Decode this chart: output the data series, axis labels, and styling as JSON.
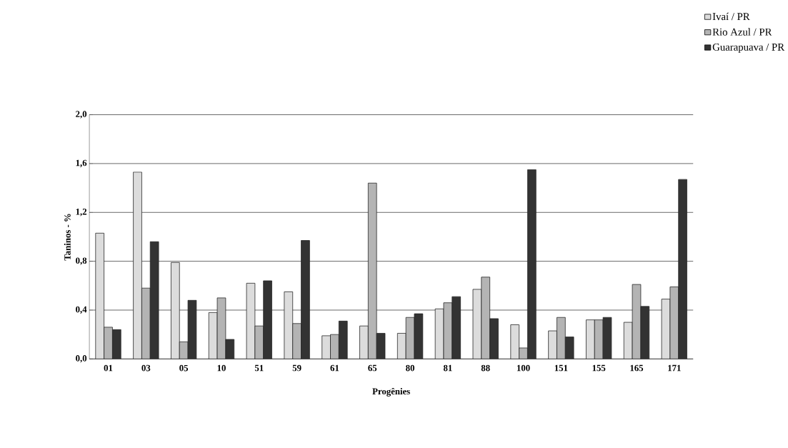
{
  "chart_data": {
    "type": "bar",
    "xlabel": "Progênies",
    "ylabel": "Taninos  -  %",
    "categories": [
      "01",
      "03",
      "05",
      "10",
      "51",
      "59",
      "61",
      "65",
      "80",
      "81",
      "88",
      "100",
      "151",
      "155",
      "165",
      "171"
    ],
    "series": [
      {
        "name": "Ivaí / PR",
        "color": "#dcdcdc",
        "values": [
          1.03,
          1.53,
          0.79,
          0.38,
          0.62,
          0.55,
          0.19,
          0.27,
          0.21,
          0.41,
          0.57,
          0.28,
          0.23,
          0.32,
          0.3,
          0.49
        ]
      },
      {
        "name": "Rio Azul / PR",
        "color": "#b4b4b4",
        "values": [
          0.26,
          0.58,
          0.14,
          0.5,
          0.27,
          0.29,
          0.2,
          1.44,
          0.34,
          0.46,
          0.67,
          0.09,
          0.34,
          0.32,
          0.61,
          0.59
        ]
      },
      {
        "name": "Guarapuava / PR",
        "color": "#333333",
        "values": [
          0.24,
          0.96,
          0.48,
          0.16,
          0.64,
          0.97,
          0.31,
          0.21,
          0.37,
          0.51,
          0.33,
          1.55,
          0.18,
          0.34,
          0.43,
          1.47
        ]
      }
    ],
    "ylim": [
      0,
      2.0
    ],
    "yticks": [
      {
        "value": 0,
        "label": "0,0"
      },
      {
        "value": 0.4,
        "label": "0,4"
      },
      {
        "value": 0.8,
        "label": "0,8"
      },
      {
        "value": 1.2,
        "label": "1,2"
      },
      {
        "value": 1.6,
        "label": "1,6"
      },
      {
        "value": 2.0,
        "label": "2,0"
      }
    ],
    "grid": "y",
    "legend": "top right"
  }
}
